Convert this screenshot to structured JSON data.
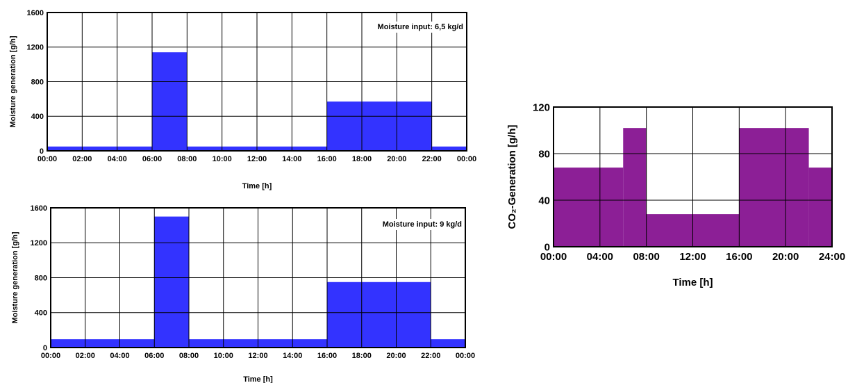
{
  "colors": {
    "moisture": "#3333ff",
    "co2": "#8c1f96"
  },
  "chart_data": [
    {
      "type": "area",
      "xlabel": "Time [h]",
      "ylabel": "Moisture generation [g/h]",
      "annotation": "Moisture input: 6,5 kg/d",
      "x_ticks": [
        "00:00",
        "02:00",
        "04:00",
        "06:00",
        "08:00",
        "10:00",
        "12:00",
        "14:00",
        "16:00",
        "18:00",
        "20:00",
        "22:00",
        "00:00"
      ],
      "y_ticks": [
        "0",
        "400",
        "800",
        "1200",
        "1600"
      ],
      "xlim": [
        0,
        24
      ],
      "ylim": [
        0,
        1600
      ],
      "grid": true,
      "steps": [
        {
          "start": 0,
          "end": 6,
          "value": 50
        },
        {
          "start": 6,
          "end": 8,
          "value": 1140
        },
        {
          "start": 8,
          "end": 16,
          "value": 50
        },
        {
          "start": 16,
          "end": 22,
          "value": 570
        },
        {
          "start": 22,
          "end": 24,
          "value": 50
        }
      ]
    },
    {
      "type": "area",
      "xlabel": "Time [h]",
      "ylabel": "Moisture generation [g/h]",
      "annotation": "Moisture input: 9 kg/d",
      "x_ticks": [
        "00:00",
        "02:00",
        "04:00",
        "06:00",
        "08:00",
        "10:00",
        "12:00",
        "14:00",
        "16:00",
        "18:00",
        "20:00",
        "22:00",
        "00:00"
      ],
      "y_ticks": [
        "0",
        "400",
        "800",
        "1200",
        "1600"
      ],
      "xlim": [
        0,
        24
      ],
      "ylim": [
        0,
        1600
      ],
      "grid": true,
      "steps": [
        {
          "start": 0,
          "end": 6,
          "value": 95
        },
        {
          "start": 6,
          "end": 8,
          "value": 1500
        },
        {
          "start": 8,
          "end": 16,
          "value": 95
        },
        {
          "start": 16,
          "end": 22,
          "value": 750
        },
        {
          "start": 22,
          "end": 24,
          "value": 95
        }
      ]
    },
    {
      "type": "area",
      "xlabel": "Time [h]",
      "ylabel": "CO₂-Generation [g/h]",
      "x_ticks": [
        "00:00",
        "04:00",
        "08:00",
        "12:00",
        "16:00",
        "20:00",
        "24:00"
      ],
      "y_ticks": [
        "0",
        "40",
        "80",
        "120"
      ],
      "xlim": [
        0,
        24
      ],
      "ylim": [
        0,
        120
      ],
      "grid": true,
      "steps": [
        {
          "start": 0,
          "end": 6,
          "value": 68
        },
        {
          "start": 6,
          "end": 8,
          "value": 102
        },
        {
          "start": 8,
          "end": 16,
          "value": 28
        },
        {
          "start": 16,
          "end": 22,
          "value": 102
        },
        {
          "start": 22,
          "end": 24,
          "value": 68
        }
      ]
    }
  ]
}
